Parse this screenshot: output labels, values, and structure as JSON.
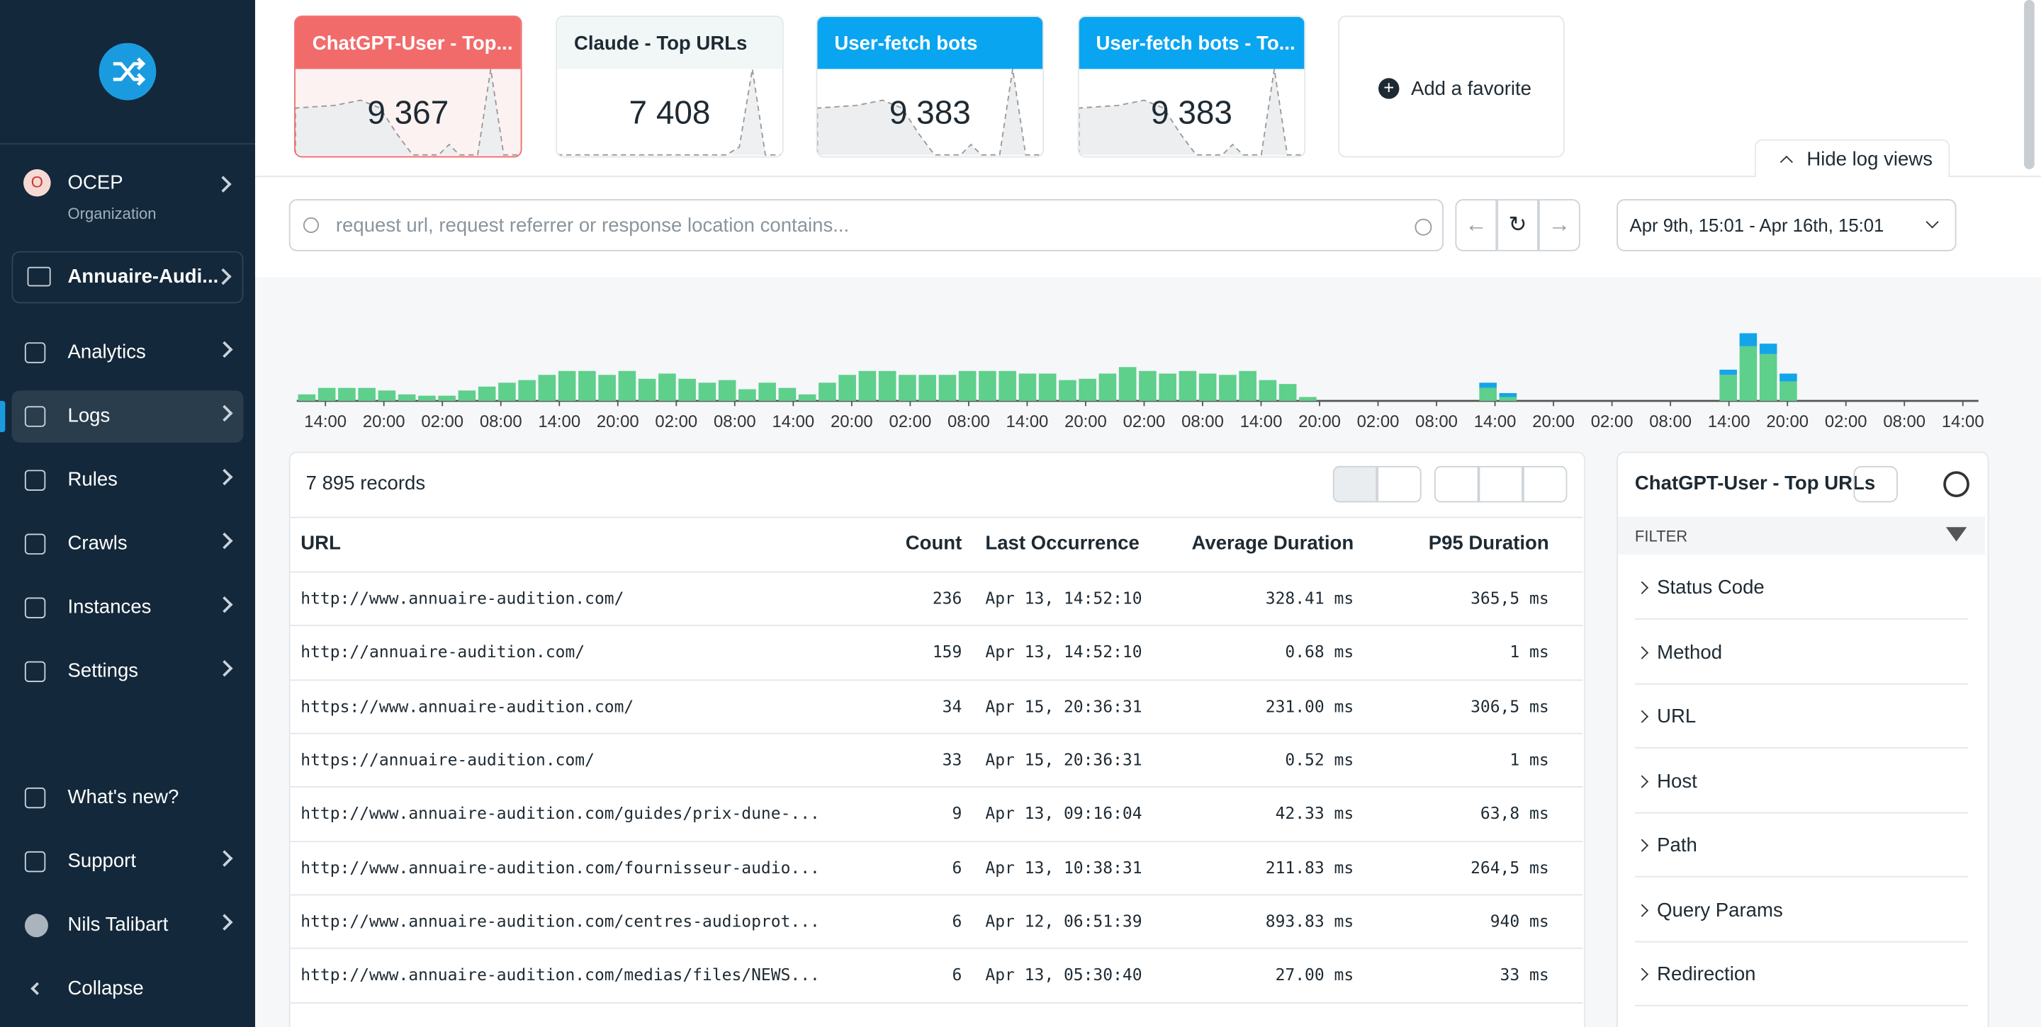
{
  "sidebar": {
    "org": {
      "name": "OCEP",
      "initial": "O",
      "subtitle": "Organization"
    },
    "project": "Annuaire-Audi...",
    "nav": [
      "Analytics",
      "Logs",
      "Rules",
      "Crawls",
      "Instances",
      "Settings"
    ],
    "bottom": [
      "What's new?",
      "Support",
      "Nils Talibart",
      "Collapse"
    ]
  },
  "favorites": [
    {
      "title": "ChatGPT-User - Top...",
      "value": "9 367"
    },
    {
      "title": "Claude - Top URLs",
      "value": "7 408"
    },
    {
      "title": "User-fetch bots",
      "value": "9 383"
    },
    {
      "title": "User-fetch bots - To...",
      "value": "9 383"
    }
  ],
  "add_favorite": "Add a favorite",
  "hide_log_views": "Hide log views",
  "search_placeholder": "request url, request referrer or response location contains...",
  "date_range": "Apr 9th, 15:01 - Apr 16th, 15:01",
  "histogram": {
    "x_labels": [
      "14:00",
      "20:00",
      "02:00",
      "08:00",
      "14:00",
      "20:00",
      "02:00",
      "08:00",
      "14:00",
      "20:00",
      "02:00",
      "08:00",
      "14:00",
      "20:00",
      "02:00",
      "08:00",
      "14:00",
      "20:00",
      "02:00",
      "08:00",
      "14:00",
      "20:00",
      "02:00",
      "08:00",
      "14:00",
      "20:00",
      "02:00",
      "08:00",
      "14:00"
    ],
    "series": [
      {
        "color": "#5fcf8c",
        "values": [
          5,
          10,
          10,
          10,
          8,
          5,
          4,
          4,
          8,
          11,
          14,
          16,
          20,
          23,
          23,
          20,
          23,
          17,
          21,
          17,
          14,
          16,
          9,
          14,
          10,
          5,
          14,
          20,
          23,
          23,
          20,
          20,
          20,
          23,
          23,
          23,
          21,
          21,
          16,
          17,
          21,
          26,
          23,
          21,
          23,
          21,
          20,
          23,
          16,
          13,
          3,
          0,
          0,
          0,
          0,
          0,
          0,
          0,
          0,
          10,
          3,
          0,
          0,
          0,
          0,
          0,
          0,
          0,
          0,
          0,
          0,
          20,
          42,
          36,
          15,
          0,
          0,
          0,
          0,
          0,
          0,
          0,
          0,
          0
        ]
      },
      {
        "color": "#13a5e8",
        "values": [
          0,
          0,
          0,
          0,
          0,
          0,
          0,
          0,
          0,
          0,
          0,
          0,
          0,
          0,
          0,
          0,
          0,
          0,
          0,
          0,
          0,
          0,
          0,
          0,
          0,
          0,
          0,
          0,
          0,
          0,
          0,
          0,
          0,
          0,
          0,
          0,
          0,
          0,
          0,
          0,
          0,
          0,
          0,
          0,
          0,
          0,
          0,
          0,
          0,
          0,
          0,
          0,
          0,
          0,
          0,
          0,
          0,
          0,
          0,
          4,
          3,
          0,
          0,
          0,
          0,
          0,
          0,
          0,
          0,
          0,
          0,
          4,
          10,
          8,
          6,
          0,
          0,
          0,
          0,
          0,
          0,
          0,
          0,
          0
        ]
      }
    ]
  },
  "table": {
    "record_count": "7 895 records",
    "columns": [
      "URL",
      "Count",
      "Last Occurrence",
      "Average Duration",
      "P95 Duration"
    ],
    "rows": [
      [
        "http://www.annuaire-audition.com/",
        "236",
        "Apr 13, 14:52:10",
        "328.41 ms",
        "365,5 ms"
      ],
      [
        "http://annuaire-audition.com/",
        "159",
        "Apr 13, 14:52:10",
        "0.68 ms",
        "1 ms"
      ],
      [
        "https://www.annuaire-audition.com/",
        "34",
        "Apr 15, 20:36:31",
        "231.00 ms",
        "306,5 ms"
      ],
      [
        "https://annuaire-audition.com/",
        "33",
        "Apr 15, 20:36:31",
        "0.52 ms",
        "1 ms"
      ],
      [
        "http://www.annuaire-audition.com/guides/prix-dune-...",
        "9",
        "Apr 13, 09:16:04",
        "42.33 ms",
        "63,8 ms"
      ],
      [
        "http://www.annuaire-audition.com/fournisseur-audio...",
        "6",
        "Apr 13, 10:38:31",
        "211.83 ms",
        "264,5 ms"
      ],
      [
        "http://www.annuaire-audition.com/centres-audioprot...",
        "6",
        "Apr 12, 06:51:39",
        "893.83 ms",
        "940 ms"
      ],
      [
        "http://www.annuaire-audition.com/medias/files/NEWS...",
        "6",
        "Apr 13, 05:30:40",
        "27.00 ms",
        "33 ms"
      ]
    ]
  },
  "side_panel": {
    "title": "ChatGPT-User - Top URLs",
    "filter_label": "FILTER",
    "filters": [
      "Status Code",
      "Method",
      "URL",
      "Host",
      "Path",
      "Query Params",
      "Redirection"
    ]
  }
}
